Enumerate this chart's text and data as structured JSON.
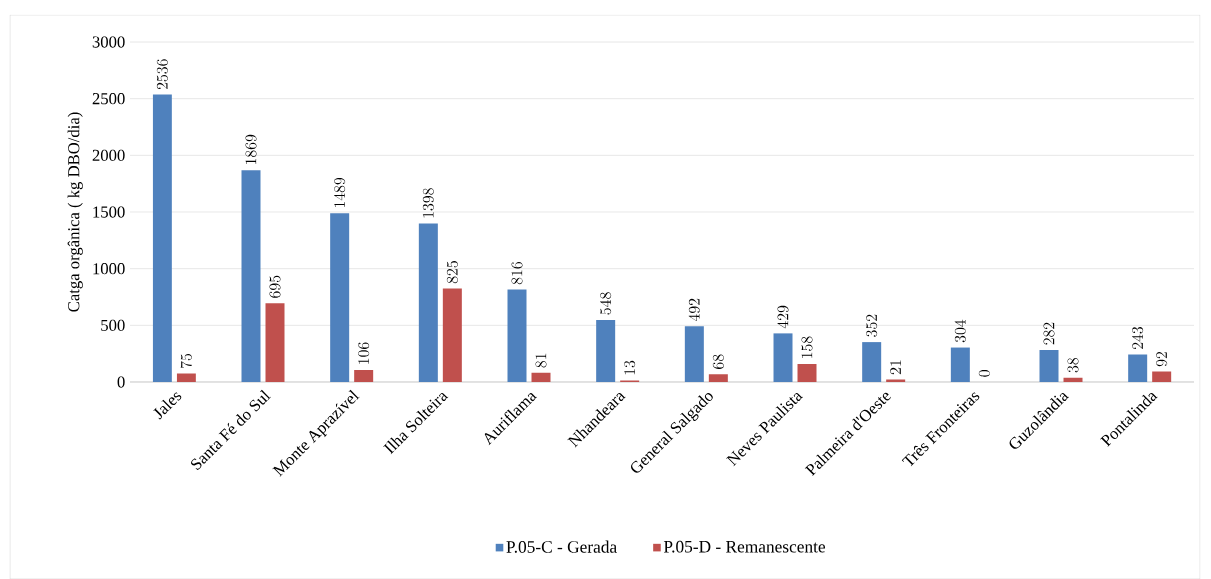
{
  "chart_data": {
    "type": "bar",
    "ylabel": "Catga orgânica ( kg DBO/dia)",
    "categories": [
      "Jales",
      "Santa Fé do Sul",
      "Monte Aprazível",
      "Ilha Solteira",
      "Auriflama",
      "Nhandeara",
      "General Salgado",
      "Neves Paulista",
      "Palmeira d'Oeste",
      "Três Fronteiras",
      "Guzolândia",
      "Pontalinda"
    ],
    "series": [
      {
        "name": "P.05-C - Gerada",
        "color": "#4f81bd",
        "values": [
          2536,
          1869,
          1489,
          1398,
          816,
          548,
          492,
          429,
          352,
          304,
          282,
          243
        ]
      },
      {
        "name": "P.05-D - Remanescente",
        "color": "#c0504d",
        "values": [
          75,
          695,
          106,
          825,
          81,
          13,
          68,
          158,
          21,
          0,
          38,
          92
        ]
      }
    ],
    "ylim": [
      0,
      3000
    ],
    "yticks": [
      0,
      500,
      1000,
      1500,
      2000,
      2500,
      3000
    ],
    "grid": "y",
    "legend": "bottom",
    "data_labels": true
  }
}
